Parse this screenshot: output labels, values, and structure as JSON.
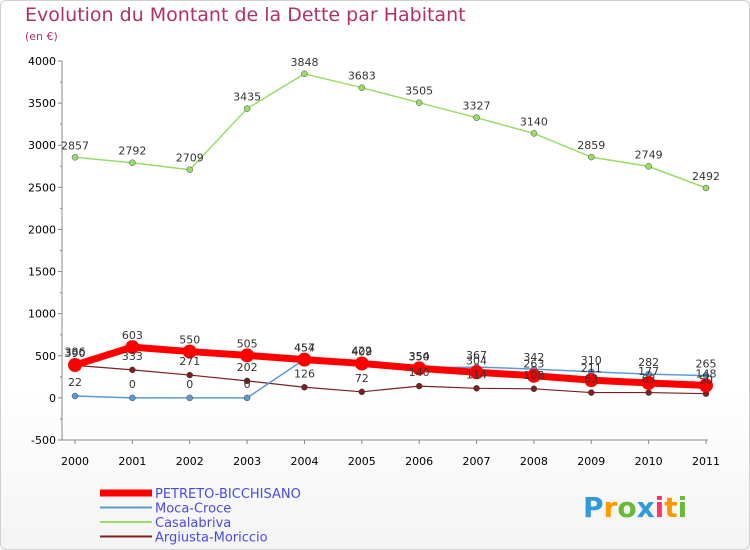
{
  "chart_data": {
    "type": "line",
    "title": "Evolution du Montant de la Dette par Habitant",
    "subtitle": "(en €)",
    "x": [
      "2000",
      "2001",
      "2002",
      "2003",
      "2004",
      "2005",
      "2006",
      "2007",
      "2008",
      "2009",
      "2010",
      "2011"
    ],
    "ylim": [
      -500,
      4000
    ],
    "yticks": [
      "-500",
      "0",
      "500",
      "1000",
      "1500",
      "2000",
      "2500",
      "3000",
      "3500",
      "4000"
    ],
    "grid": false,
    "legend_position": "bottom-left",
    "series": [
      {
        "name": "PETRETO-BICCHISANO",
        "color": "#ff0000",
        "values": [
          390,
          603,
          550,
          505,
          454,
          409,
          350,
          304,
          263,
          211,
          177,
          148
        ]
      },
      {
        "name": "Moca-Croce",
        "color": "#5b9bd5",
        "values": [
          22,
          0,
          0,
          0,
          457,
          422,
          354,
          367,
          342,
          310,
          282,
          265
        ]
      },
      {
        "name": "Casalabriva",
        "color": "#99dd66",
        "values": [
          2857,
          2792,
          2709,
          3435,
          3848,
          3683,
          3505,
          3327,
          3140,
          2859,
          2749,
          2492
        ]
      },
      {
        "name": "Argiusta-Moriccio",
        "color": "#7a2020",
        "values": [
          386,
          333,
          271,
          202,
          126,
          72,
          140,
          114,
          108,
          63,
          63,
          50
        ]
      }
    ]
  },
  "logo": {
    "letters": [
      "P",
      "r",
      "o",
      "x",
      "i",
      "t",
      "i"
    ],
    "colors": [
      "#3399dd",
      "#ff9900",
      "#66bb33",
      "#3399dd",
      "#ff3366",
      "#ff9900",
      "#66bb33"
    ]
  }
}
